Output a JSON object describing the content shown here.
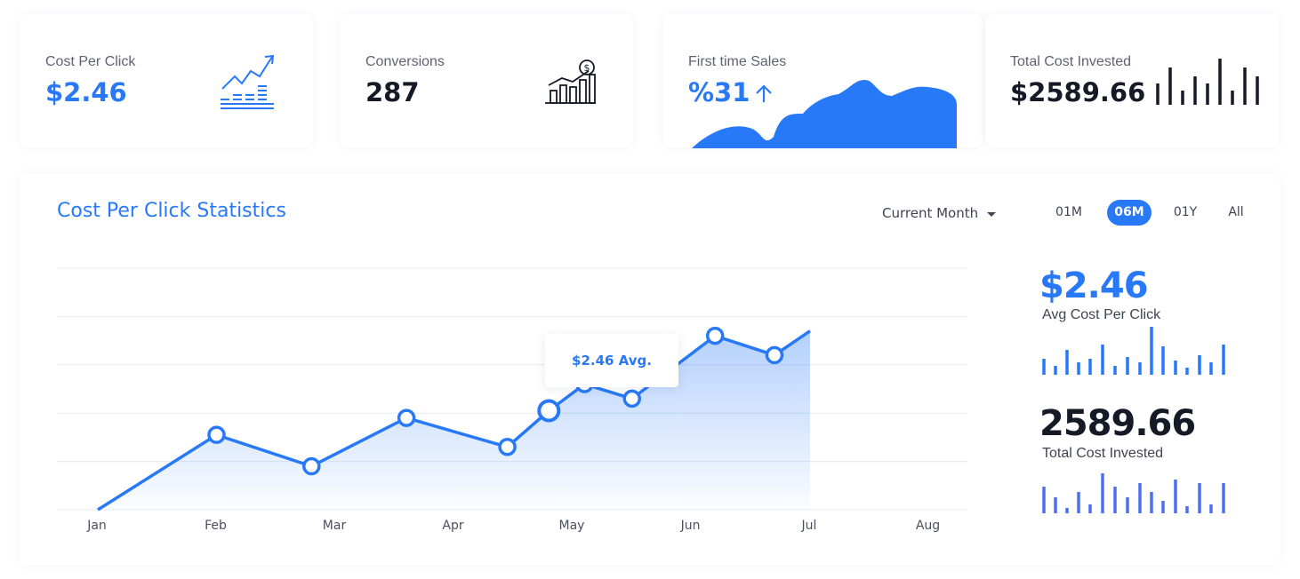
{
  "kpis": [
    {
      "label": "Cost Per Click",
      "value": "$2.46"
    },
    {
      "label": "Conversions",
      "value": "287"
    },
    {
      "label": "First time Sales",
      "value": "%31"
    },
    {
      "label": "Total Cost Invested",
      "value": "$2589.66"
    }
  ],
  "panel": {
    "title": "Cost Per Click Statistics",
    "period_select": "Current Month",
    "ranges": [
      "01M",
      "06M",
      "01Y",
      "All"
    ],
    "active_range": "06M"
  },
  "tooltip": "$2.46 Avg.",
  "side": {
    "avg_value": "$2.46",
    "avg_label": "Avg Cost Per Click",
    "total_value": "2589.66",
    "total_label": "Total Cost Invested"
  },
  "colors": {
    "accent": "#2879f7",
    "dark": "#141a26",
    "bar_violet": "#4a6ff0"
  },
  "icons": [
    "growth-chart-icon",
    "revenue-chart-icon",
    "arrow-up-icon",
    "chevron-down-icon"
  ],
  "chart_data": {
    "type": "line",
    "x_labels": [
      "Jan",
      "Feb",
      "Mar",
      "Apr",
      "May",
      "Jun",
      "Jul",
      "Aug"
    ],
    "x": [
      0.0,
      1.0,
      1.8,
      2.6,
      3.45,
      3.8,
      4.1,
      4.5,
      5.2,
      5.7,
      6.0
    ],
    "values": [
      0.0,
      1.55,
      0.9,
      1.9,
      1.3,
      2.05,
      2.6,
      2.3,
      3.6,
      3.2,
      3.7
    ],
    "markers": [
      1,
      2,
      3,
      4,
      5,
      6,
      7,
      8,
      9
    ],
    "highlight_index": 5,
    "ylim": [
      0,
      5
    ],
    "grid": true
  }
}
